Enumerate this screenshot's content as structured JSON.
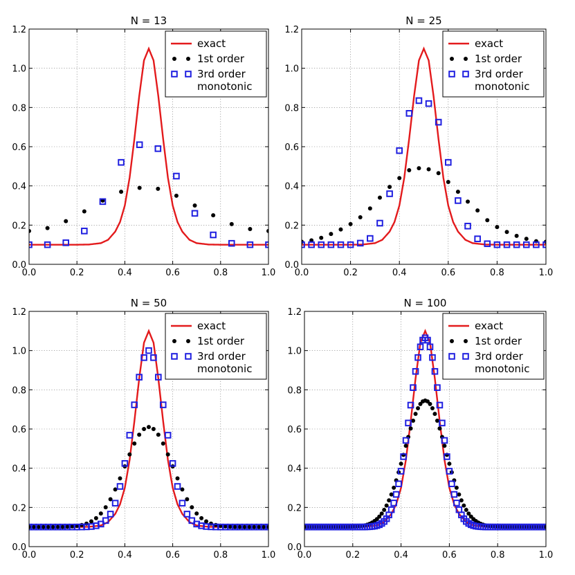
{
  "colors": {
    "exact": "#e31a1c",
    "first_order": "#000000",
    "third_order": "#1f1fe0",
    "background": "#ffffff"
  },
  "chart_data": [
    {
      "type": "line",
      "title": "N = 13",
      "N": 13,
      "xlim": [
        0.0,
        1.0
      ],
      "ylim": [
        0.0,
        1.2
      ],
      "xticks": [
        "0.0",
        "0.2",
        "0.4",
        "0.6",
        "0.8",
        "1.0"
      ],
      "yticks": [
        "0.0",
        "0.2",
        "0.4",
        "0.6",
        "0.8",
        "1.0",
        "1.2"
      ],
      "grid": true,
      "legend": {
        "position": "top-right",
        "labels": [
          "exact",
          "1st order",
          "3rd order\nmonotonic"
        ]
      },
      "series": [
        {
          "name": "exact",
          "style": "line",
          "x": [
            0.0,
            0.05,
            0.1,
            0.15,
            0.2,
            0.25,
            0.3,
            0.33,
            0.36,
            0.38,
            0.4,
            0.42,
            0.44,
            0.46,
            0.48,
            0.5,
            0.52,
            0.54,
            0.56,
            0.58,
            0.6,
            0.62,
            0.64,
            0.67,
            0.7,
            0.75,
            0.8,
            0.85,
            0.9,
            0.95,
            1.0
          ],
          "y": [
            0.1,
            0.1,
            0.1,
            0.1,
            0.1,
            0.101,
            0.108,
            0.125,
            0.167,
            0.216,
            0.3,
            0.442,
            0.64,
            0.857,
            1.04,
            1.1,
            1.04,
            0.857,
            0.64,
            0.442,
            0.3,
            0.216,
            0.167,
            0.125,
            0.108,
            0.101,
            0.1,
            0.1,
            0.1,
            0.1,
            0.1
          ]
        },
        {
          "name": "1st order",
          "style": "dots",
          "x": [
            0.0,
            0.0769,
            0.1538,
            0.2308,
            0.3077,
            0.3846,
            0.4615,
            0.5385,
            0.6154,
            0.6923,
            0.7692,
            0.8462,
            0.9231,
            1.0
          ],
          "y": [
            0.17,
            0.185,
            0.22,
            0.27,
            0.325,
            0.37,
            0.39,
            0.385,
            0.35,
            0.3,
            0.25,
            0.205,
            0.18,
            0.17
          ]
        },
        {
          "name": "3rd order monotonic",
          "style": "squares",
          "x": [
            0.0,
            0.0769,
            0.1538,
            0.2308,
            0.3077,
            0.3846,
            0.4615,
            0.5385,
            0.6154,
            0.6923,
            0.7692,
            0.8462,
            0.9231,
            1.0
          ],
          "y": [
            0.1,
            0.1,
            0.11,
            0.17,
            0.32,
            0.52,
            0.61,
            0.59,
            0.45,
            0.26,
            0.15,
            0.107,
            0.1,
            0.1
          ]
        }
      ]
    },
    {
      "type": "line",
      "title": "N = 25",
      "N": 25,
      "xlim": [
        0.0,
        1.0
      ],
      "ylim": [
        0.0,
        1.2
      ],
      "xticks": [
        "0.0",
        "0.2",
        "0.4",
        "0.6",
        "0.8",
        "1.0"
      ],
      "yticks": [
        "0.0",
        "0.2",
        "0.4",
        "0.6",
        "0.8",
        "1.0",
        "1.2"
      ],
      "grid": true,
      "legend": {
        "position": "top-right",
        "labels": [
          "exact",
          "1st order",
          "3rd order\nmonotonic"
        ]
      },
      "series": [
        {
          "name": "exact",
          "style": "line",
          "x": [
            0.0,
            0.05,
            0.1,
            0.15,
            0.2,
            0.25,
            0.3,
            0.33,
            0.36,
            0.38,
            0.4,
            0.42,
            0.44,
            0.46,
            0.48,
            0.5,
            0.52,
            0.54,
            0.56,
            0.58,
            0.6,
            0.62,
            0.64,
            0.67,
            0.7,
            0.75,
            0.8,
            0.85,
            0.9,
            0.95,
            1.0
          ],
          "y": [
            0.1,
            0.1,
            0.1,
            0.1,
            0.1,
            0.101,
            0.108,
            0.125,
            0.167,
            0.216,
            0.3,
            0.442,
            0.64,
            0.857,
            1.04,
            1.1,
            1.04,
            0.857,
            0.64,
            0.442,
            0.3,
            0.216,
            0.167,
            0.125,
            0.108,
            0.101,
            0.1,
            0.1,
            0.1,
            0.1,
            0.1
          ]
        },
        {
          "name": "1st order",
          "style": "dots",
          "x": [
            0.0,
            0.04,
            0.08,
            0.12,
            0.16,
            0.2,
            0.24,
            0.28,
            0.32,
            0.36,
            0.4,
            0.44,
            0.48,
            0.52,
            0.56,
            0.6,
            0.64,
            0.68,
            0.72,
            0.76,
            0.8,
            0.84,
            0.88,
            0.92,
            0.96,
            1.0
          ],
          "y": [
            0.115,
            0.122,
            0.135,
            0.155,
            0.178,
            0.205,
            0.24,
            0.285,
            0.34,
            0.395,
            0.44,
            0.48,
            0.49,
            0.485,
            0.465,
            0.42,
            0.37,
            0.32,
            0.275,
            0.225,
            0.19,
            0.165,
            0.145,
            0.13,
            0.118,
            0.115
          ]
        },
        {
          "name": "3rd order monotonic",
          "style": "squares",
          "x": [
            0.0,
            0.04,
            0.08,
            0.12,
            0.16,
            0.2,
            0.24,
            0.28,
            0.32,
            0.36,
            0.4,
            0.44,
            0.48,
            0.52,
            0.56,
            0.6,
            0.64,
            0.68,
            0.72,
            0.76,
            0.8,
            0.84,
            0.88,
            0.92,
            0.96,
            1.0
          ],
          "y": [
            0.1,
            0.1,
            0.1,
            0.1,
            0.1,
            0.1,
            0.108,
            0.132,
            0.21,
            0.36,
            0.58,
            0.77,
            0.835,
            0.82,
            0.725,
            0.52,
            0.325,
            0.195,
            0.13,
            0.105,
            0.1,
            0.1,
            0.1,
            0.1,
            0.1,
            0.1
          ]
        }
      ]
    },
    {
      "type": "line",
      "title": "N = 50",
      "N": 50,
      "xlim": [
        0.0,
        1.0
      ],
      "ylim": [
        0.0,
        1.2
      ],
      "xticks": [
        "0.0",
        "0.2",
        "0.4",
        "0.6",
        "0.8",
        "1.0"
      ],
      "yticks": [
        "0.0",
        "0.2",
        "0.4",
        "0.6",
        "0.8",
        "1.0",
        "1.2"
      ],
      "grid": true,
      "legend": {
        "position": "top-right",
        "labels": [
          "exact",
          "1st order",
          "3rd order\nmonotonic"
        ]
      },
      "series": [
        {
          "name": "exact",
          "style": "line",
          "x": [
            0.0,
            0.05,
            0.1,
            0.15,
            0.2,
            0.25,
            0.3,
            0.33,
            0.36,
            0.38,
            0.4,
            0.42,
            0.44,
            0.46,
            0.48,
            0.5,
            0.52,
            0.54,
            0.56,
            0.58,
            0.6,
            0.62,
            0.64,
            0.67,
            0.7,
            0.75,
            0.8,
            0.85,
            0.9,
            0.95,
            1.0
          ],
          "y": [
            0.1,
            0.1,
            0.1,
            0.1,
            0.1,
            0.101,
            0.108,
            0.125,
            0.167,
            0.216,
            0.3,
            0.442,
            0.64,
            0.857,
            1.04,
            1.1,
            1.04,
            0.857,
            0.64,
            0.442,
            0.3,
            0.216,
            0.167,
            0.125,
            0.108,
            0.101,
            0.1,
            0.1,
            0.1,
            0.1,
            0.1
          ]
        },
        {
          "name": "1st order",
          "style": "gaussian-dots",
          "N": 50,
          "amplitude": 0.51,
          "sigma": 0.1,
          "base": 0.1
        },
        {
          "name": "3rd order monotonic",
          "style": "gaussian-squares",
          "N": 50,
          "amplitude": 0.9,
          "sigma": 0.07,
          "base": 0.1
        }
      ]
    },
    {
      "type": "line",
      "title": "N = 100",
      "N": 100,
      "xlim": [
        0.0,
        1.0
      ],
      "ylim": [
        0.0,
        1.2
      ],
      "xticks": [
        "0.0",
        "0.2",
        "0.4",
        "0.6",
        "0.8",
        "1.0"
      ],
      "yticks": [
        "0.0",
        "0.2",
        "0.4",
        "0.6",
        "0.8",
        "1.0",
        "1.2"
      ],
      "grid": true,
      "legend": {
        "position": "top-right",
        "labels": [
          "exact",
          "1st order",
          "3rd order\nmonotonic"
        ]
      },
      "series": [
        {
          "name": "exact",
          "style": "line",
          "x": [
            0.0,
            0.05,
            0.1,
            0.15,
            0.2,
            0.25,
            0.3,
            0.33,
            0.36,
            0.38,
            0.4,
            0.42,
            0.44,
            0.46,
            0.48,
            0.5,
            0.52,
            0.54,
            0.56,
            0.58,
            0.6,
            0.62,
            0.64,
            0.67,
            0.7,
            0.75,
            0.8,
            0.85,
            0.9,
            0.95,
            1.0
          ],
          "y": [
            0.1,
            0.1,
            0.1,
            0.1,
            0.1,
            0.101,
            0.108,
            0.125,
            0.167,
            0.216,
            0.3,
            0.442,
            0.64,
            0.857,
            1.04,
            1.1,
            1.04,
            0.857,
            0.64,
            0.442,
            0.3,
            0.216,
            0.167,
            0.125,
            0.108,
            0.101,
            0.1,
            0.1,
            0.1,
            0.1,
            0.1
          ]
        },
        {
          "name": "1st order",
          "style": "gaussian-dots",
          "N": 100,
          "amplitude": 0.645,
          "sigma": 0.085,
          "base": 0.1
        },
        {
          "name": "3rd order monotonic",
          "style": "gaussian-squares",
          "N": 100,
          "amplitude": 0.965,
          "sigma": 0.064,
          "base": 0.1
        }
      ]
    }
  ]
}
